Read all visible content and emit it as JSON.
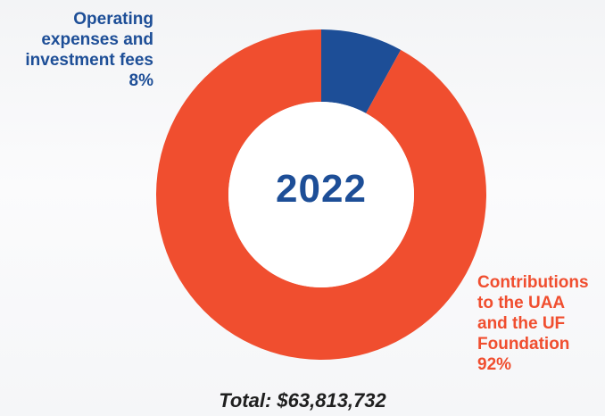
{
  "chart_data": {
    "type": "pie",
    "title": "2022",
    "slices": [
      {
        "label": "Operating expenses and investment fees",
        "value": 8,
        "color": "#1d4e97"
      },
      {
        "label": "Contributions to the UAA and the UF Foundation",
        "value": 92,
        "color": "#f04e2f"
      }
    ],
    "labels": {
      "operating": "Operating\nexpenses and\ninvestment fees\n8%",
      "contributions": "Contributions\nto the UAA\nand the UF\nFoundation\n92%"
    },
    "total_text": "Total: $63,813,732"
  }
}
